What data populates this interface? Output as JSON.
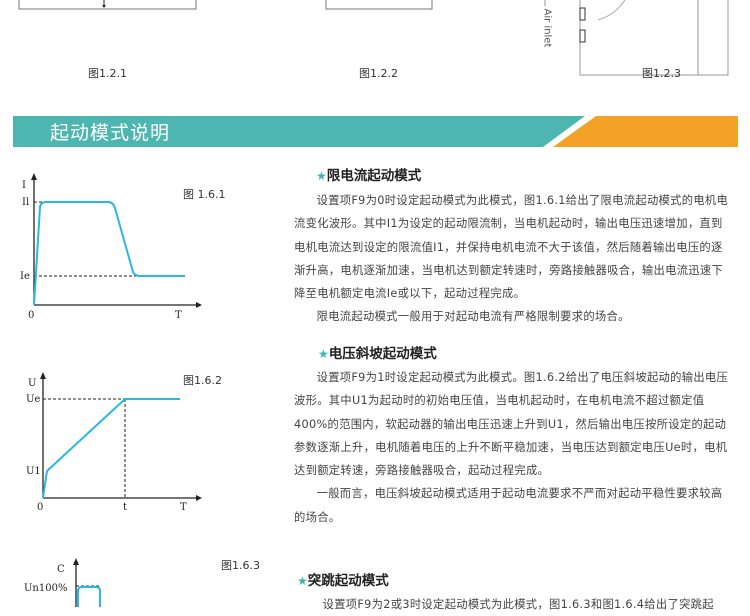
{
  "top_figures": {
    "captions": [
      "图1.2.1",
      "图1.2.2",
      "图1.2.3"
    ],
    "air_inlet": "Air inlet"
  },
  "banner": {
    "title": "起动模式说明",
    "colors": {
      "teal": "#4db6b0",
      "orange": "#f3a227"
    }
  },
  "sections": [
    {
      "heading": "限电流起动模式",
      "paragraphs": [
        "设置项F9为0时设定起动模式为此模式，图1.6.1给出了限电流起动模式的电机电流变化波形。其中I1为设定的起动限流制，当电机起动时，输出电压迅速增加，直到电机电流达到设定的限流值I1，并保持电机电流不大于该值，然后随着输出电压的逐渐升高，电机逐渐加速，当电机达到额定转速时，旁路接触器吸合，输出电流迅速下降至电机额定电流Ie或以下，起动过程完成。",
        "限电流起动模式一般用于对起动电流有严格限制要求的场合。"
      ]
    },
    {
      "heading": "电压斜坡起动模式",
      "paragraphs": [
        "设置项F9为1时设定起动模式为此模式。图1.6.2给出了电压斜坡起动的输出电压波形。其中U1为起动时的初始电压值，当电机起动时，在电机电流不超过额定值400%的范围内，软起动器的输出电压迅速上升到U1，然后输出电压按所设定的起动参数逐渐上升，电机随着电压的上升不断平稳加速，当电压达到额定电压Ue时，电机达到额定转速，旁路接触器吸合，起动过程完成。",
        "一般而言，电压斜坡起动模式适用于起动电流要求不严而对起动平稳性要求较高的场合。"
      ]
    },
    {
      "heading": "突跳起动模式",
      "paragraphs": [
        "设置项F9为2或3时设定起动模式为此模式，图1.6.3和图1.6.4给出了突跳起"
      ]
    }
  ],
  "figures": {
    "fig1": {
      "caption": "图 1.6.1",
      "y_label": "I",
      "levels": [
        "Il",
        "Ie"
      ],
      "origin": "0",
      "x_label": "T"
    },
    "fig2": {
      "caption": "图1.6.2",
      "y_label": "U",
      "levels": [
        "Ue",
        "U1"
      ],
      "origin": "0",
      "x_tick": "t",
      "x_label": "T"
    },
    "fig3": {
      "caption": "图1.6.3",
      "y_label": "C",
      "levels": [
        "Un100%"
      ]
    },
    "curve_color": "#29b6e8"
  }
}
